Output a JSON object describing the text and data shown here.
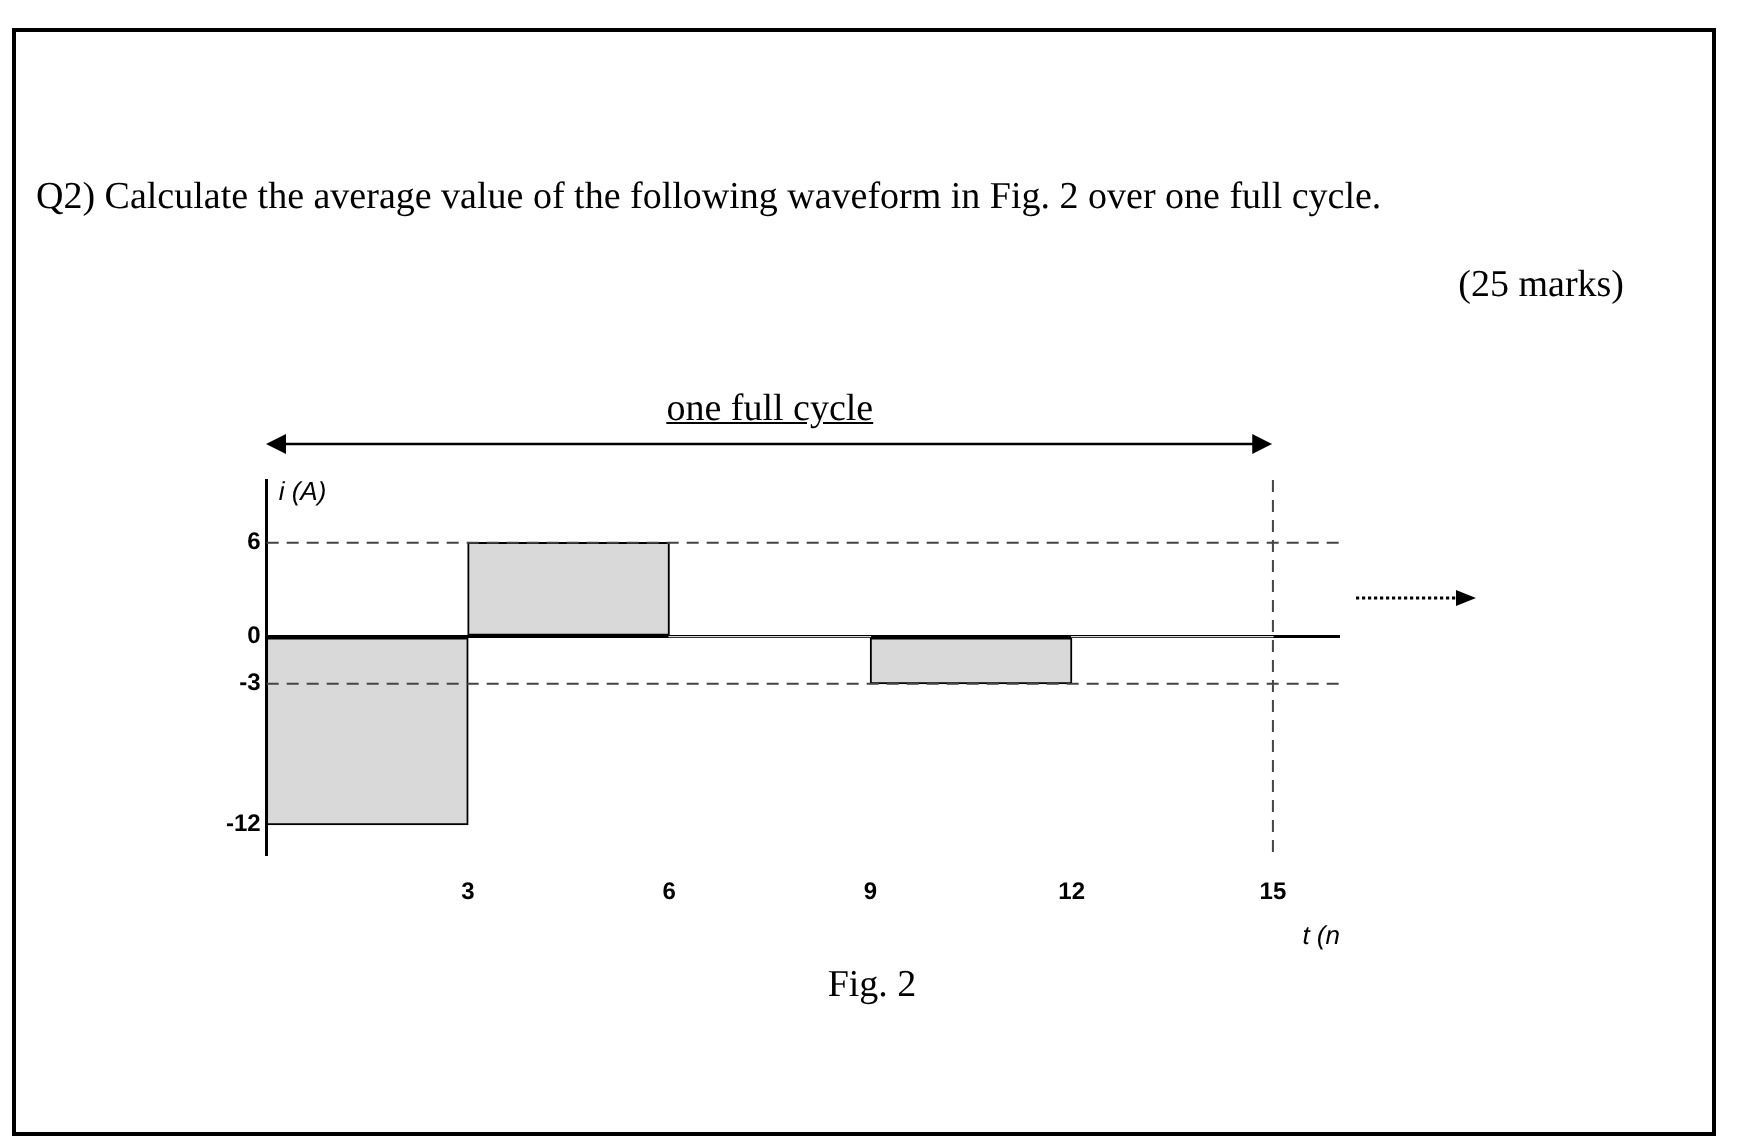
{
  "chart_data": {
    "type": "histogram",
    "title": "Q2) Calculate the average value of the following waveform in Fig. 2 over one full cycle.",
    "annotations": [
      "(25 marks)",
      "one full cycle",
      "Fig. 2"
    ],
    "xlabel": "t (n",
    "ylabel": "i (A)",
    "bins": [
      0,
      3,
      6,
      9,
      12,
      15
    ],
    "values": [
      -12,
      6,
      0,
      -3,
      0
    ],
    "color": "#d9d9d9",
    "xlim": [
      0,
      16
    ],
    "xticks": [
      3,
      6,
      9,
      12,
      15
    ],
    "ylim": [
      -14,
      10
    ],
    "yticks": [
      -12,
      -3,
      0,
      6
    ],
    "ref_lines": [
      {
        "axis": "y",
        "value": 6,
        "line_style": "dashed"
      },
      {
        "axis": "y",
        "value": -3,
        "line_style": "dashed"
      },
      {
        "axis": "x",
        "value": 15,
        "line_style": "dashed"
      }
    ],
    "grid": false,
    "legend": false
  }
}
